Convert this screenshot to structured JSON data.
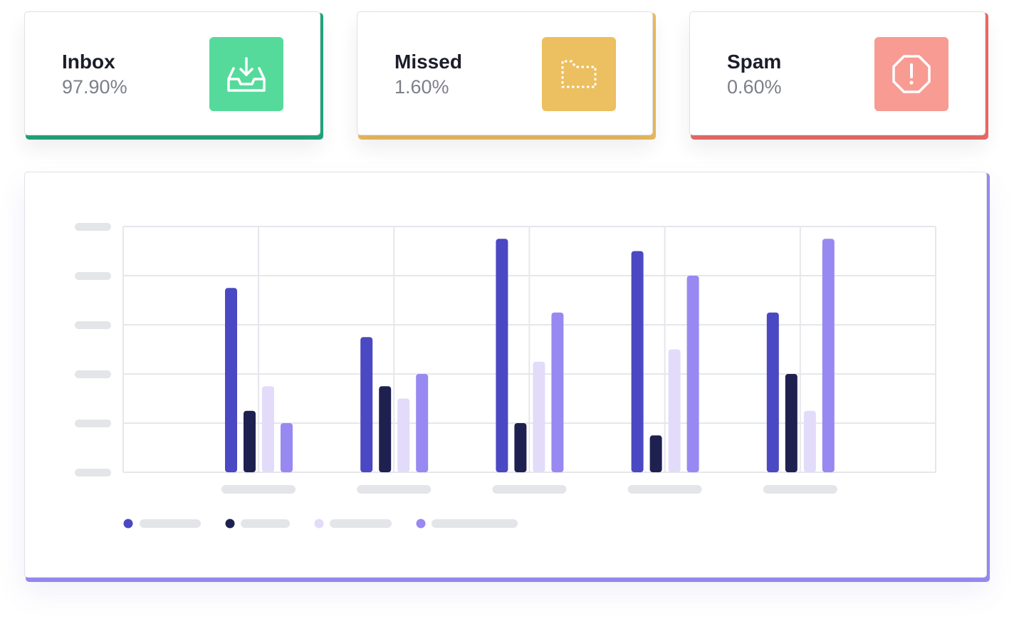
{
  "stats": [
    {
      "label": "Inbox",
      "value": "97.90%",
      "icon": "inbox-download-icon",
      "accent": "#21a67a",
      "icon_bg": "#56da9c"
    },
    {
      "label": "Missed",
      "value": "1.60%",
      "icon": "dotted-folder-icon",
      "accent": "#ebbb5c",
      "icon_bg": "#ecbf60"
    },
    {
      "label": "Spam",
      "value": "0.60%",
      "icon": "alert-octagon-icon",
      "accent": "#ec6b66",
      "icon_bg": "#f89b93"
    }
  ],
  "chart_data": {
    "type": "bar",
    "title": "",
    "xlabel": "",
    "ylabel": "",
    "ylim": [
      0,
      100
    ],
    "grid": true,
    "legend_position": "bottom-left",
    "axis_labels_visible": false,
    "categories": [
      "",
      "",
      "",
      "",
      ""
    ],
    "series": [
      {
        "color": "#4b48c3",
        "values": [
          75,
          55,
          95,
          90,
          65
        ]
      },
      {
        "color": "#1e2150",
        "values": [
          25,
          35,
          20,
          15,
          40
        ]
      },
      {
        "color": "#e3dbfa",
        "values": [
          35,
          30,
          45,
          50,
          25
        ]
      },
      {
        "color": "#9789f1",
        "values": [
          20,
          40,
          65,
          80,
          95
        ]
      }
    ]
  },
  "colors": {
    "grid": "#e6e7eb",
    "placeholder": "#e3e5e9",
    "chart_accent": "#978af0"
  }
}
